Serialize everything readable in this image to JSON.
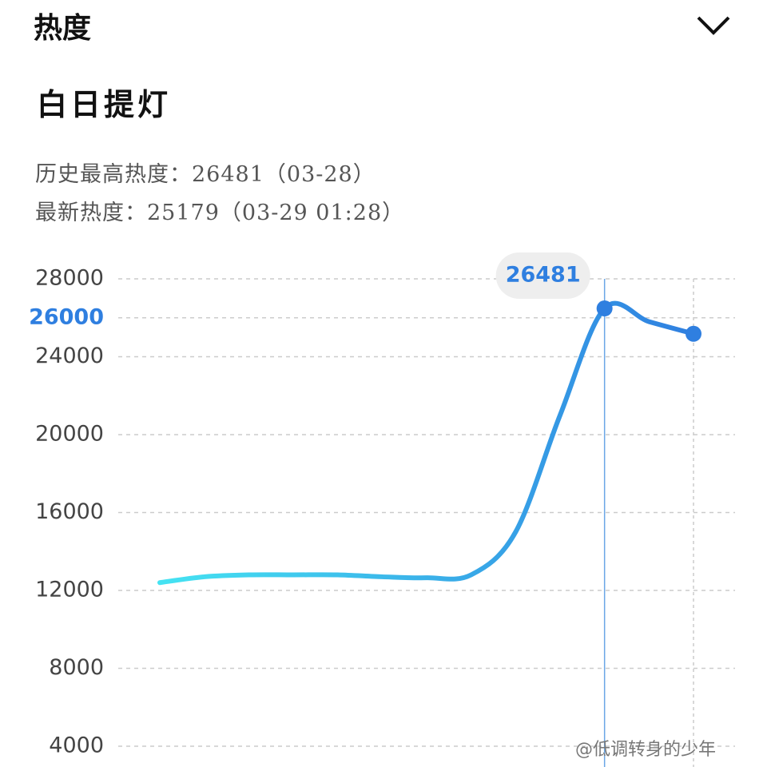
{
  "header": {
    "title": "热度"
  },
  "topic": {
    "title": "白日提灯"
  },
  "stats": [
    "历史最高热度：26481（03-28）",
    "最新热度：25179（03-29 01:28）"
  ],
  "watermark": "@低调转身的少年",
  "chart_data": {
    "type": "line",
    "categories": [
      null,
      null,
      null,
      null,
      null,
      null,
      null,
      null,
      null,
      null,
      null,
      null,
      null
    ],
    "values": [
      12400,
      12700,
      12800,
      12800,
      12800,
      12700,
      12650,
      12800,
      15000,
      21000,
      26481,
      25800,
      25179
    ],
    "colors": [
      "#45e3f2",
      "#2f7fe0"
    ],
    "ylim": [
      4000,
      28000
    ],
    "yticks": [
      4000,
      8000,
      12000,
      16000,
      20000,
      24000,
      26000,
      28000
    ],
    "highlighted_ytick": 26000,
    "grid": true
  }
}
